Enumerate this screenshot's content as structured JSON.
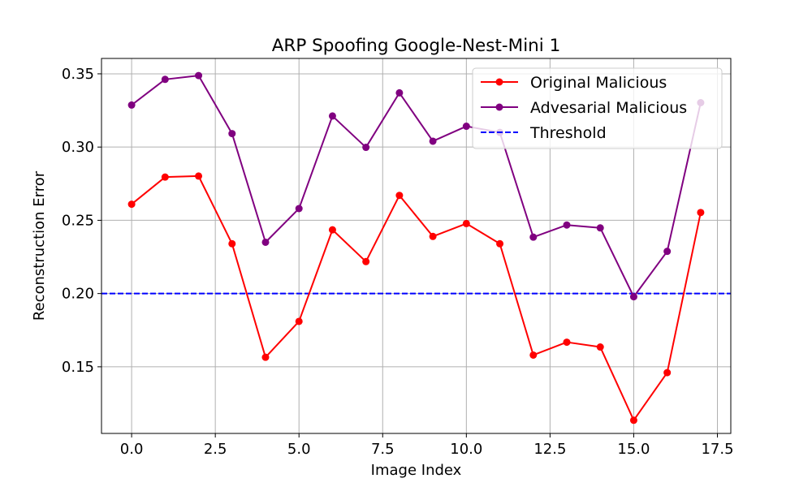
{
  "chart_data": {
    "type": "line",
    "title": "ARP Spoofing Google-Nest-Mini 1",
    "xlabel": "Image Index",
    "ylabel": "Reconstruction Error",
    "xlim": [
      -0.9,
      17.9
    ],
    "ylim": [
      0.1045,
      0.3605
    ],
    "grid": true,
    "legend_placement": "top-right",
    "x_ticks": [
      0.0,
      2.5,
      5.0,
      7.5,
      10.0,
      12.5,
      15.0,
      17.5
    ],
    "x_tick_labels": [
      "0.0",
      "2.5",
      "5.0",
      "7.5",
      "10.0",
      "12.5",
      "15.0",
      "17.5"
    ],
    "y_ticks": [
      0.15,
      0.2,
      0.25,
      0.3,
      0.35
    ],
    "y_tick_labels": [
      "0.15",
      "0.20",
      "0.25",
      "0.30",
      "0.35"
    ],
    "x": [
      0,
      1,
      2,
      3,
      4,
      5,
      6,
      7,
      8,
      9,
      10,
      11,
      12,
      13,
      14,
      15,
      16,
      17
    ],
    "series": [
      {
        "name": "Original Malicious",
        "color": "#ff0000",
        "values": [
          0.261,
          0.2795,
          0.2802,
          0.234,
          0.1565,
          0.181,
          0.2435,
          0.2218,
          0.267,
          0.239,
          0.2478,
          0.234,
          0.158,
          0.1668,
          0.1635,
          0.1135,
          0.146,
          0.2553
        ]
      },
      {
        "name": "Advesarial Malicious",
        "color": "#800080",
        "values": [
          0.3287,
          0.3462,
          0.3488,
          0.3092,
          0.235,
          0.258,
          0.3212,
          0.2998,
          0.337,
          0.304,
          0.3142,
          0.31,
          0.2385,
          0.2468,
          0.2448,
          0.1978,
          0.2288,
          0.3303
        ]
      }
    ],
    "threshold": {
      "name": "Threshold",
      "value": 0.2,
      "color": "#0000ff",
      "style": "dashed"
    }
  }
}
